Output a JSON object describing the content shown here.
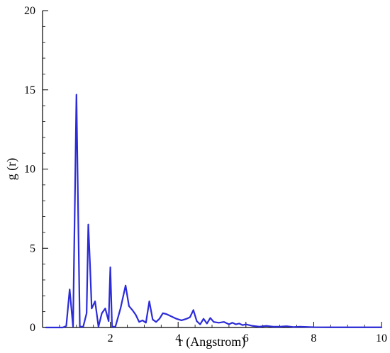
{
  "chart_data": {
    "type": "line",
    "title": "",
    "xlabel": "r (Angstrom)",
    "ylabel": "g (r)",
    "xlim": [
      0,
      10
    ],
    "ylim": [
      0,
      20
    ],
    "x_ticks": [
      2,
      4,
      6,
      8,
      10
    ],
    "y_ticks": [
      0,
      5,
      10,
      15,
      20
    ],
    "grid": false,
    "series": [
      {
        "color": "#2b2bd9",
        "x": [
          0.1,
          0.6,
          0.7,
          0.8,
          0.9,
          1.0,
          1.1,
          1.2,
          1.3,
          1.35,
          1.4,
          1.45,
          1.55,
          1.65,
          1.75,
          1.85,
          1.95,
          2.0,
          2.05,
          2.15,
          2.3,
          2.45,
          2.55,
          2.65,
          2.75,
          2.85,
          2.95,
          3.05,
          3.15,
          3.25,
          3.35,
          3.45,
          3.55,
          3.65,
          3.8,
          3.95,
          4.1,
          4.25,
          4.35,
          4.45,
          4.55,
          4.65,
          4.75,
          4.85,
          4.95,
          5.05,
          5.2,
          5.35,
          5.5,
          5.6,
          5.7,
          5.8,
          5.9,
          6.0,
          6.2,
          6.4,
          6.6,
          6.8,
          7.0,
          7.2,
          7.4,
          7.6,
          8.0,
          8.5,
          9.0,
          9.5,
          10.0
        ],
        "y": [
          0,
          0,
          0.1,
          2.4,
          0.05,
          14.7,
          0.05,
          0.05,
          0.9,
          6.5,
          4.0,
          1.2,
          1.65,
          0.05,
          0.9,
          1.2,
          0.4,
          3.8,
          0.05,
          0.05,
          1.2,
          2.65,
          1.35,
          1.1,
          0.8,
          0.35,
          0.45,
          0.3,
          1.65,
          0.5,
          0.35,
          0.55,
          0.9,
          0.85,
          0.7,
          0.55,
          0.45,
          0.55,
          0.65,
          1.1,
          0.4,
          0.2,
          0.55,
          0.25,
          0.6,
          0.35,
          0.3,
          0.35,
          0.2,
          0.3,
          0.2,
          0.25,
          0.15,
          0.2,
          0.1,
          0.05,
          0.1,
          0.05,
          0.05,
          0.08,
          0.03,
          0.05,
          0.02,
          0.01,
          0.01,
          0.01,
          0.01
        ]
      }
    ]
  }
}
